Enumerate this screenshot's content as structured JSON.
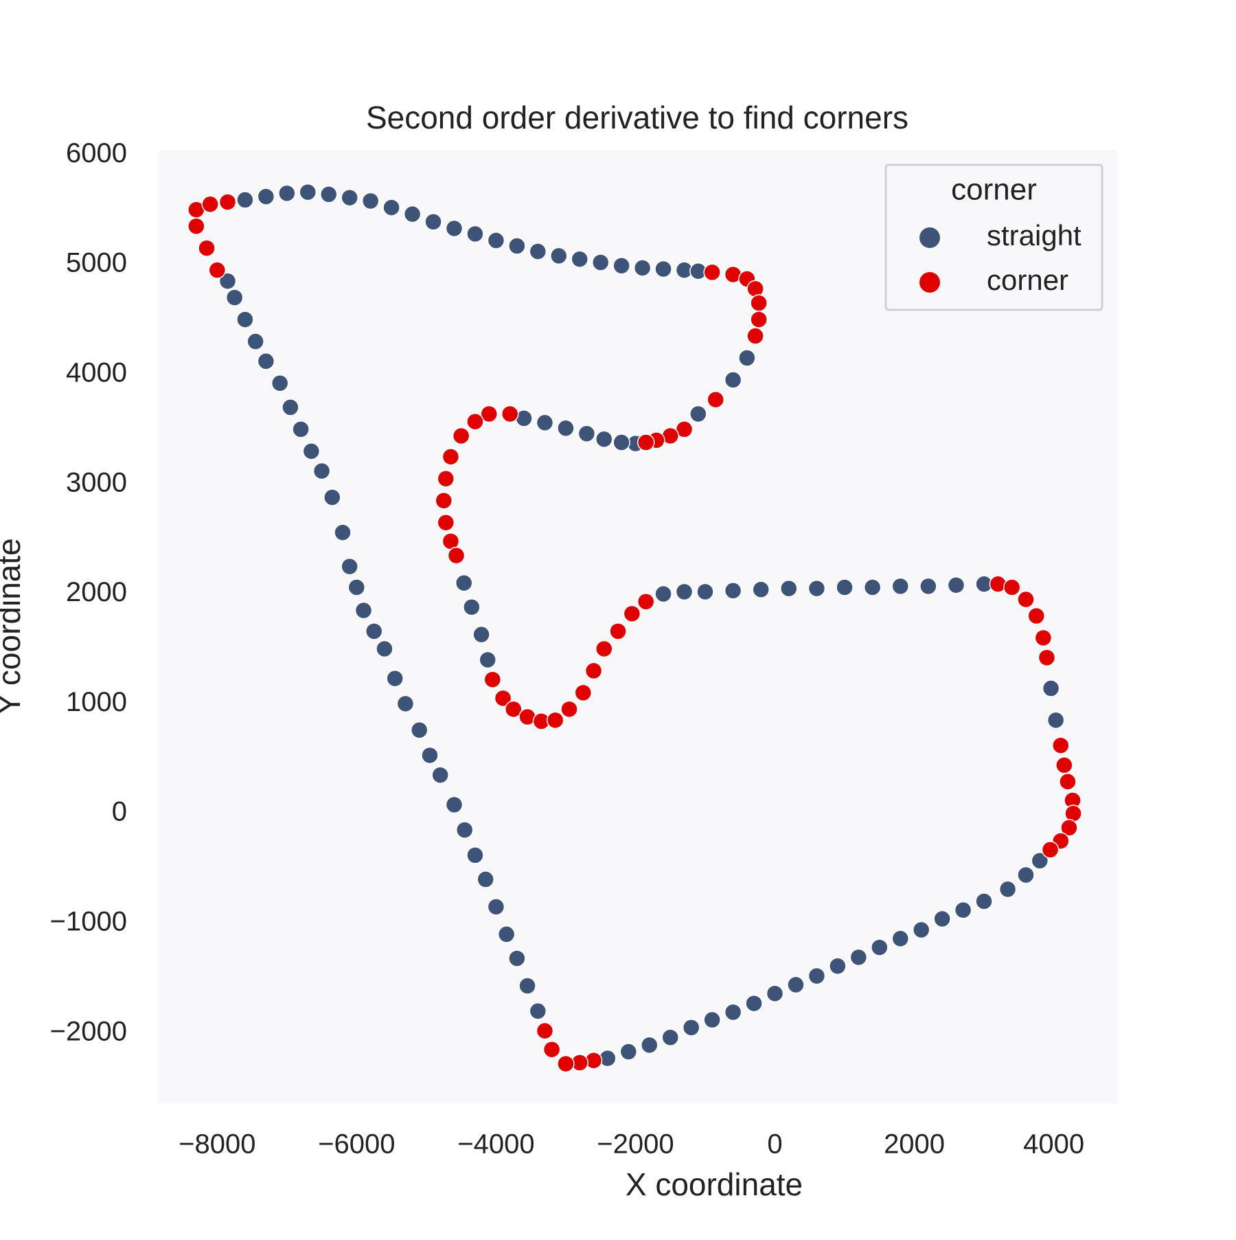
{
  "chart_data": {
    "type": "scatter",
    "title": "Second order derivative to find corners",
    "x_label": "X coordinate",
    "y_label": "Y coordinate",
    "xlim": [
      -8850,
      4910
    ],
    "ylim": [
      -2640,
      6040
    ],
    "xticks": [
      {
        "value": -8000,
        "label": "−8000"
      },
      {
        "value": -6000,
        "label": "−6000"
      },
      {
        "value": -4000,
        "label": "−4000"
      },
      {
        "value": -2000,
        "label": "−2000"
      },
      0,
      2000,
      4000
    ],
    "yticks": [
      {
        "value": -2000,
        "label": "−2000"
      },
      {
        "value": -1000,
        "label": "−1000"
      },
      0,
      1000,
      2000,
      3000,
      4000,
      5000,
      6000
    ],
    "grid": false,
    "legend_title": "corner",
    "legend_position": "upper right",
    "series": [
      {
        "name": "straight",
        "color": "#3d5478",
        "x": [
          -7600,
          -7300,
          -7000,
          -6700,
          -6400,
          -6100,
          -5800,
          -5500,
          -5200,
          -4900,
          -4600,
          -4300,
          -4000,
          -3700,
          -3400,
          -3100,
          -2800,
          -2500,
          -2200,
          -1900,
          -1600,
          -1300,
          -1100,
          -400,
          -600,
          -1100,
          -2000,
          -2200,
          -2450,
          -2700,
          -3000,
          -3300,
          -3600,
          -4460,
          -4350,
          -4210,
          -4120,
          -1600,
          -1300,
          -1000,
          -600,
          -200,
          200,
          600,
          1000,
          1400,
          1800,
          2200,
          2600,
          3000,
          3960,
          4030,
          3800,
          3600,
          3340,
          3000,
          2700,
          2400,
          2100,
          1800,
          1500,
          1200,
          900,
          600,
          300,
          0,
          -300,
          -600,
          -900,
          -1200,
          -1500,
          -1800,
          -2100,
          -2400,
          -3400,
          -3550,
          -3700,
          -3850,
          -4000,
          -4150,
          -4300,
          -4450,
          -4600,
          -4800,
          -4950,
          -5100,
          -5300,
          -5450,
          -5600,
          -5750,
          -5900,
          -6000,
          -6100,
          -6200,
          -6350,
          -6500,
          -6650,
          -6800,
          -6950,
          -7100,
          -7300,
          -7450,
          -7600,
          -7750,
          -7850
        ],
        "values": [
          5590,
          5620,
          5650,
          5660,
          5640,
          5610,
          5580,
          5520,
          5460,
          5390,
          5330,
          5280,
          5220,
          5170,
          5120,
          5080,
          5050,
          5020,
          4990,
          4970,
          4960,
          4950,
          4940,
          4150,
          3950,
          3640,
          3370,
          3380,
          3410,
          3460,
          3510,
          3560,
          3600,
          2100,
          1880,
          1630,
          1400,
          2000,
          2020,
          2020,
          2030,
          2040,
          2050,
          2050,
          2060,
          2060,
          2070,
          2070,
          2080,
          2090,
          1140,
          850,
          -430,
          -560,
          -690,
          -800,
          -880,
          -960,
          -1060,
          -1140,
          -1220,
          -1310,
          -1390,
          -1480,
          -1560,
          -1640,
          -1730,
          -1810,
          -1880,
          -1950,
          -2040,
          -2110,
          -2170,
          -2230,
          -1800,
          -1570,
          -1320,
          -1100,
          -850,
          -600,
          -380,
          -150,
          80,
          350,
          530,
          760,
          1000,
          1230,
          1500,
          1660,
          1850,
          2060,
          2250,
          2560,
          2880,
          3120,
          3300,
          3500,
          3700,
          3920,
          4120,
          4300,
          4500,
          4700,
          4850
        ]
      },
      {
        "name": "corner",
        "color": "#e00000",
        "x": [
          -900,
          -600,
          -400,
          -280,
          -230,
          -230,
          -280,
          -850,
          -1300,
          -1500,
          -1700,
          -1850,
          -3800,
          -4100,
          -4300,
          -4500,
          -4650,
          -4720,
          -4750,
          -4720,
          -4650,
          -4570,
          -4050,
          -3900,
          -3750,
          -3550,
          -3350,
          -3150,
          -2950,
          -2750,
          -2600,
          -2450,
          -2250,
          -2050,
          -1850,
          3200,
          3400,
          3600,
          3750,
          3850,
          3900,
          4100,
          4150,
          4200,
          4270,
          4280,
          4220,
          4100,
          3950,
          -2600,
          -2800,
          -3000,
          -3200,
          -3300,
          -8000,
          -8150,
          -8300,
          -8300,
          -8100,
          -7850
        ],
        "values": [
          4930,
          4910,
          4870,
          4780,
          4650,
          4500,
          4350,
          3770,
          3500,
          3440,
          3400,
          3380,
          3640,
          3640,
          3570,
          3440,
          3250,
          3050,
          2850,
          2650,
          2480,
          2350,
          1220,
          1050,
          950,
          880,
          840,
          850,
          950,
          1100,
          1300,
          1500,
          1660,
          1820,
          1930,
          2090,
          2060,
          1950,
          1800,
          1600,
          1420,
          620,
          440,
          290,
          120,
          0,
          -130,
          -250,
          -330,
          -2250,
          -2270,
          -2280,
          -2150,
          -1980,
          4950,
          5150,
          5350,
          5500,
          5550,
          5570
        ]
      }
    ]
  }
}
